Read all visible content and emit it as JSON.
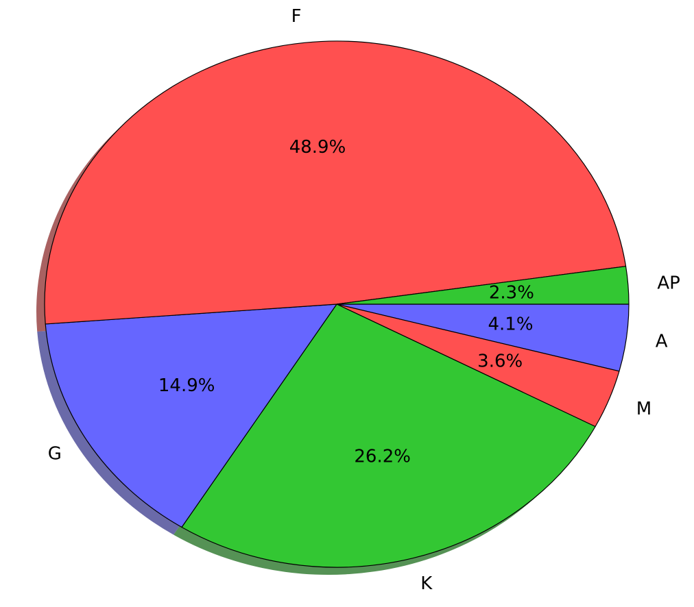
{
  "chart_data": {
    "type": "pie",
    "labels": [
      "A",
      "M",
      "K",
      "G",
      "F",
      "AP"
    ],
    "values": [
      4.1,
      3.6,
      26.2,
      14.9,
      48.9,
      2.3
    ],
    "pct_labels": [
      "4.1%",
      "3.6%",
      "26.2%",
      "14.9%",
      "48.9%",
      "2.3%"
    ],
    "colors": [
      "#6666ff",
      "#ff5050",
      "#33c733",
      "#6666ff",
      "#ff5050",
      "#33c733"
    ],
    "shadow": true,
    "start_angle_deg": 0,
    "direction": "clockwise"
  }
}
